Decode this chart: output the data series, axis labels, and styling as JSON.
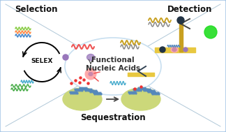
{
  "title": "Functional\nNucleic Acids",
  "section_selection": "Selection",
  "section_detection": "Detection",
  "section_sequestration": "Sequestration",
  "selex_label": "SELEX",
  "bg_color": "#ffffff",
  "border_color": "#a8c8e8",
  "divider_color": "#b0c8d8",
  "ellipse_color": "#c8dff0",
  "title_fontsize": 7.5,
  "section_fontsize": 8.5,
  "fig_width": 3.24,
  "fig_height": 1.89,
  "dpi": 100
}
